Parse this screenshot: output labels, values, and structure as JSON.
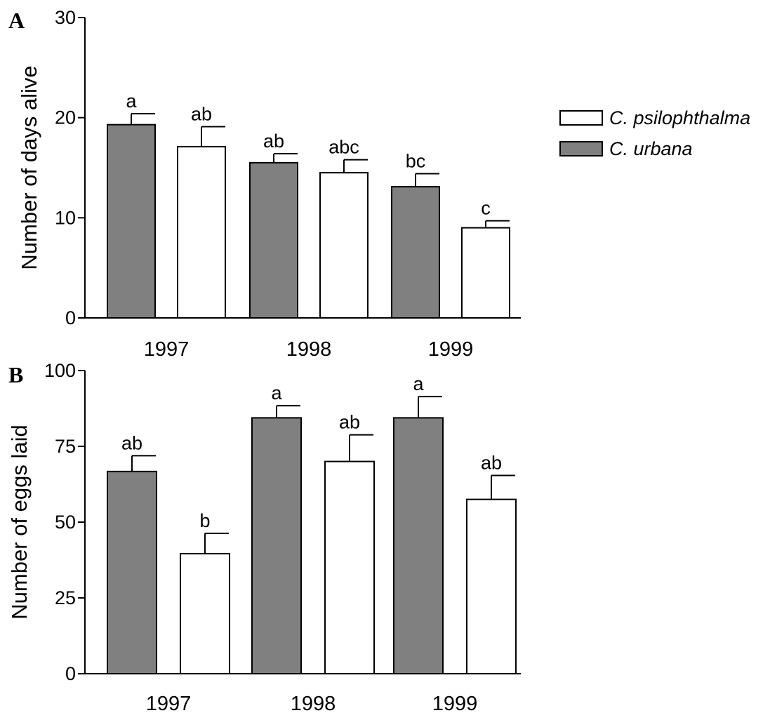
{
  "colors": {
    "c_urbana_fill": "#808080",
    "c_psilophthalma_fill": "#ffffff",
    "outline": "#000000",
    "background": "#ffffff"
  },
  "legend": {
    "placement": "right of panel A",
    "entries": [
      {
        "label": "C. psilophthalma",
        "fill": "#ffffff"
      },
      {
        "label": "C. urbana",
        "fill": "#808080"
      }
    ]
  },
  "chart_data": [
    {
      "type": "bar",
      "panel_label": "A",
      "ylabel": "Number of days alive",
      "xlabel": "",
      "categories": [
        "1997",
        "1998",
        "1999"
      ],
      "ylim": [
        0,
        30
      ],
      "yticks": [
        0,
        10,
        20,
        30
      ],
      "grid": false,
      "series": [
        {
          "name": "C. urbana",
          "values": [
            19.3,
            15.5,
            13.1
          ],
          "errors": [
            1.1,
            0.9,
            1.3
          ],
          "letters": [
            "a",
            "ab",
            "bc"
          ]
        },
        {
          "name": "C. psilophthalma",
          "values": [
            17.1,
            14.5,
            9.0
          ],
          "errors": [
            2.0,
            1.3,
            0.7
          ],
          "letters": [
            "ab",
            "abc",
            "c"
          ]
        }
      ]
    },
    {
      "type": "bar",
      "panel_label": "B",
      "ylabel": "Number of eggs laid",
      "xlabel": "",
      "categories": [
        "1997",
        "1998",
        "1999"
      ],
      "ylim": [
        0,
        100
      ],
      "yticks": [
        0,
        25,
        50,
        75,
        100
      ],
      "grid": false,
      "series": [
        {
          "name": "C. urbana",
          "values": [
            66.7,
            84.4,
            84.4
          ],
          "errors": [
            5.2,
            4.0,
            7.0
          ],
          "letters": [
            "ab",
            "a",
            "a"
          ]
        },
        {
          "name": "C. psilophthalma",
          "values": [
            39.6,
            70.0,
            57.5
          ],
          "errors": [
            6.7,
            8.8,
            7.9
          ],
          "letters": [
            "b",
            "ab",
            "ab"
          ]
        }
      ]
    }
  ]
}
